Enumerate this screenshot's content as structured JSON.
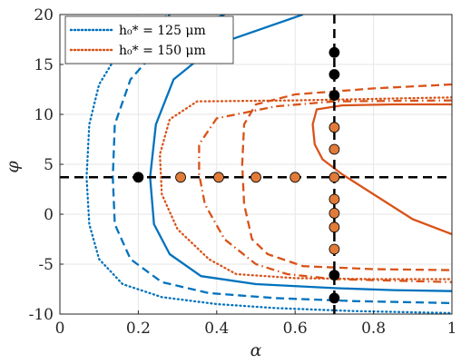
{
  "chart_data": {
    "type": "line",
    "xlabel": "α",
    "ylabel": "φ",
    "xlim": [
      0,
      1
    ],
    "ylim": [
      -10,
      20
    ],
    "xticks": [
      "0",
      "0.2",
      "0.4",
      "0.6",
      "0.8",
      "1"
    ],
    "yticks": [
      "-10",
      "-5",
      "0",
      "5",
      "10",
      "15",
      "20"
    ],
    "grid": true,
    "legend_placement": "top-left",
    "legend": [
      {
        "label": "h₀* = 125 μm",
        "color": "#0072BD",
        "style": "dotted"
      },
      {
        "label": "h₀* = 150 μm",
        "color": "#D95319",
        "style": "dotted"
      }
    ],
    "reference_lines": {
      "vertical_x": 0.7,
      "horizontal_y": 3.7,
      "color": "#000000",
      "style": "dashed"
    },
    "series": [
      {
        "color": "#0072BD",
        "style": "dotted",
        "x": [
          0.28,
          0.17,
          0.1,
          0.075,
          0.068,
          0.075,
          0.1,
          0.16,
          0.26,
          0.4,
          0.55,
          0.75,
          1.0
        ],
        "y": [
          20,
          17.5,
          13,
          9,
          3.7,
          -1,
          -4.5,
          -7,
          -8.3,
          -9.0,
          -9.4,
          -9.7,
          -9.9
        ]
      },
      {
        "color": "#0072BD",
        "style": "dashed",
        "x": [
          0.42,
          0.27,
          0.18,
          0.14,
          0.135,
          0.14,
          0.18,
          0.26,
          0.38,
          0.55,
          0.75,
          1.0
        ],
        "y": [
          20,
          17.5,
          13.5,
          9,
          3.7,
          -1,
          -4.5,
          -6.8,
          -7.9,
          -8.4,
          -8.7,
          -8.9
        ]
      },
      {
        "color": "#0072BD",
        "style": "solid",
        "x": [
          0.62,
          0.4,
          0.29,
          0.245,
          0.23,
          0.24,
          0.28,
          0.36,
          0.5,
          0.7,
          0.85,
          1.0
        ],
        "y": [
          20,
          17,
          13.5,
          9,
          3.7,
          -1,
          -4,
          -6.2,
          -7.0,
          -7.4,
          -7.6,
          -7.7
        ]
      },
      {
        "color": "#D95319",
        "style": "dotted",
        "x": [
          1.0,
          0.6,
          0.35,
          0.28,
          0.255,
          0.26,
          0.3,
          0.38,
          0.45,
          0.6,
          0.8,
          1.0
        ],
        "y": [
          11.7,
          11.4,
          11.3,
          9.5,
          6,
          2,
          -1.5,
          -4.5,
          -6.0,
          -6.4,
          -6.5,
          -6.5
        ]
      },
      {
        "color": "#D95319",
        "style": "dashdot",
        "x": [
          1.0,
          0.7,
          0.55,
          0.4,
          0.355,
          0.355,
          0.37,
          0.42,
          0.5,
          0.58,
          0.7,
          1.0
        ],
        "y": [
          11.4,
          11.3,
          10.8,
          9.6,
          7,
          4,
          1,
          -2.5,
          -5.0,
          -6.0,
          -6.5,
          -6.8
        ]
      },
      {
        "color": "#D95319",
        "style": "dashed",
        "x": [
          1.0,
          0.8,
          0.6,
          0.5,
          0.47,
          0.465,
          0.47,
          0.49,
          0.53,
          0.62,
          0.8,
          1.0
        ],
        "y": [
          13.0,
          12.6,
          12.0,
          11.0,
          9,
          5,
          1,
          -2.5,
          -4.0,
          -5.2,
          -5.5,
          -5.6
        ]
      },
      {
        "color": "#D95319",
        "style": "solid",
        "x": [
          1.0,
          0.85,
          0.72,
          0.655,
          0.645,
          0.65,
          0.67,
          0.72,
          0.8,
          0.9,
          1.0
        ],
        "y": [
          11.0,
          11.0,
          10.9,
          10.5,
          9,
          7,
          5.5,
          4.0,
          2.0,
          -0.5,
          -2.0
        ]
      }
    ],
    "points": [
      {
        "x": 0.2,
        "y": 3.7,
        "color": "#000000"
      },
      {
        "x": 0.308,
        "y": 3.7,
        "color": "#E07B39"
      },
      {
        "x": 0.405,
        "y": 3.7,
        "color": "#E07B39"
      },
      {
        "x": 0.5,
        "y": 3.7,
        "color": "#E07B39"
      },
      {
        "x": 0.6,
        "y": 3.7,
        "color": "#E07B39"
      },
      {
        "x": 0.7,
        "y": 3.7,
        "color": "#E07B39"
      },
      {
        "x": 0.7,
        "y": 16.2,
        "color": "#000000"
      },
      {
        "x": 0.7,
        "y": 14.0,
        "color": "#000000"
      },
      {
        "x": 0.7,
        "y": 11.9,
        "color": "#000000"
      },
      {
        "x": 0.7,
        "y": 8.7,
        "color": "#E07B39"
      },
      {
        "x": 0.7,
        "y": 6.5,
        "color": "#E07B39"
      },
      {
        "x": 0.7,
        "y": 1.5,
        "color": "#E07B39"
      },
      {
        "x": 0.7,
        "y": 0.1,
        "color": "#E07B39"
      },
      {
        "x": 0.7,
        "y": -1.3,
        "color": "#E07B39"
      },
      {
        "x": 0.7,
        "y": -3.5,
        "color": "#E07B39"
      },
      {
        "x": 0.7,
        "y": -6.1,
        "color": "#000000"
      },
      {
        "x": 0.7,
        "y": -8.4,
        "color": "#000000"
      }
    ]
  }
}
